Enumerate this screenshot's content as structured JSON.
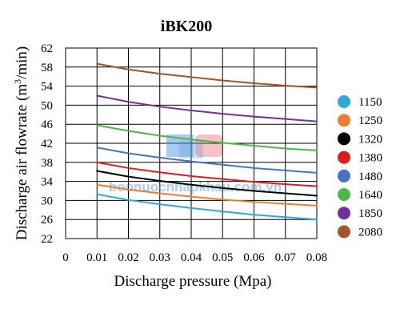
{
  "chart_data": {
    "type": "line",
    "title": "iBK200",
    "xlabel": "Discharge pressure (Mpa)",
    "ylabel_main": "Discharge air flowrate (m",
    "ylabel_sup": "3",
    "ylabel_end": "/min)",
    "xlim": [
      0,
      0.08
    ],
    "ylim": [
      22,
      62
    ],
    "x_ticks": [
      0,
      0.01,
      0.02,
      0.03,
      0.04,
      0.05,
      0.06,
      0.07,
      0.08
    ],
    "x_tick_labels": [
      "0",
      "0.01",
      "0.02",
      "0.03",
      "0.04",
      "0.05",
      "0.06",
      "0.07",
      "0.08"
    ],
    "y_ticks": [
      22,
      26,
      30,
      34,
      38,
      42,
      46,
      50,
      54,
      58,
      62
    ],
    "y_tick_labels": [
      "22",
      "26",
      "30",
      "34",
      "38",
      "42",
      "46",
      "50",
      "54",
      "58",
      "62"
    ],
    "grid": true,
    "legend_position": "right",
    "x": [
      0.01,
      0.02,
      0.03,
      0.04,
      0.05,
      0.06,
      0.07,
      0.08
    ],
    "series": [
      {
        "name": "1150",
        "color": "#2fa8dc",
        "values": [
          31.3,
          30.1,
          29.2,
          28.4,
          27.7,
          27.0,
          26.5,
          26.0
        ]
      },
      {
        "name": "1250",
        "color": "#ed7d31",
        "values": [
          33.3,
          32.3,
          31.5,
          30.8,
          30.2,
          29.7,
          29.3,
          28.9
        ]
      },
      {
        "name": "1320",
        "color": "#000000",
        "values": [
          36.2,
          35.0,
          34.1,
          33.3,
          32.6,
          32.0,
          31.5,
          31.0
        ]
      },
      {
        "name": "1380",
        "color": "#e31a1c",
        "values": [
          38.0,
          36.8,
          35.9,
          35.1,
          34.5,
          33.9,
          33.4,
          33.0
        ]
      },
      {
        "name": "1480",
        "color": "#4472c4",
        "values": [
          41.1,
          39.9,
          39.0,
          38.2,
          37.5,
          36.8,
          36.3,
          35.8
        ]
      },
      {
        "name": "1640",
        "color": "#4cb848",
        "values": [
          45.8,
          44.6,
          43.6,
          42.8,
          42.1,
          41.5,
          40.9,
          40.5
        ]
      },
      {
        "name": "1850",
        "color": "#7030a0",
        "values": [
          52.0,
          50.7,
          49.7,
          48.9,
          48.2,
          47.6,
          47.1,
          46.6
        ]
      },
      {
        "name": "2080",
        "color": "#a5532a",
        "values": [
          58.7,
          57.5,
          56.6,
          55.9,
          55.2,
          54.6,
          54.1,
          53.7
        ]
      }
    ],
    "watermark": {
      "text": "bonnuocnhapkhau.com.vn",
      "logo_colors": [
        "#3f8fe0",
        "#e85050"
      ]
    }
  }
}
